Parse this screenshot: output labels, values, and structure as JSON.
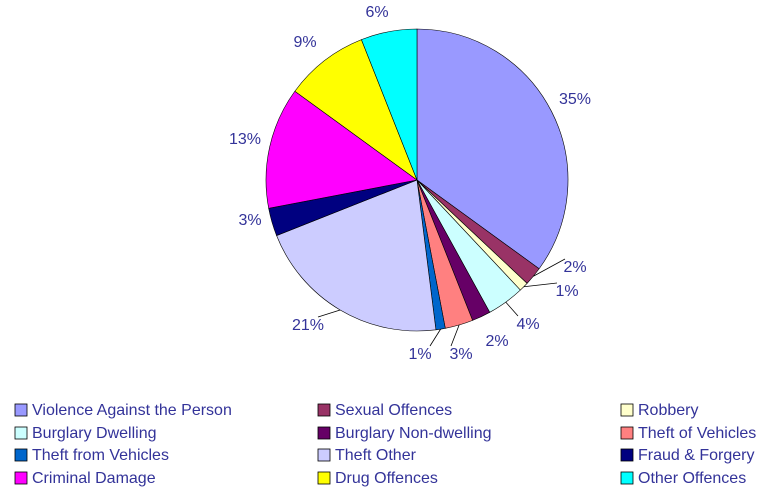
{
  "chart_data": {
    "type": "pie",
    "categories": [
      "Violence Against the Person",
      "Sexual Offences",
      "Robbery",
      "Burglary Dwelling",
      "Burglary Non-dwelling",
      "Theft of Vehicles",
      "Theft from Vehicles",
      "Theft Other",
      "Fraud & Forgery",
      "Criminal Damage",
      "Drug Offences",
      "Other Offences"
    ],
    "values": [
      35,
      2,
      1,
      4,
      2,
      3,
      1,
      21,
      3,
      13,
      9,
      6
    ],
    "value_labels": [
      "35%",
      "2%",
      "1%",
      "4%",
      "2%",
      "3%",
      "1%",
      "21%",
      "3%",
      "13%",
      "9%",
      "6%"
    ],
    "colors": [
      "#9999ff",
      "#993366",
      "#ffffcc",
      "#ccffff",
      "#660066",
      "#ff8080",
      "#0066cc",
      "#ccccff",
      "#000080",
      "#ff00ff",
      "#ffff00",
      "#00ffff"
    ],
    "legend": "bottom"
  }
}
